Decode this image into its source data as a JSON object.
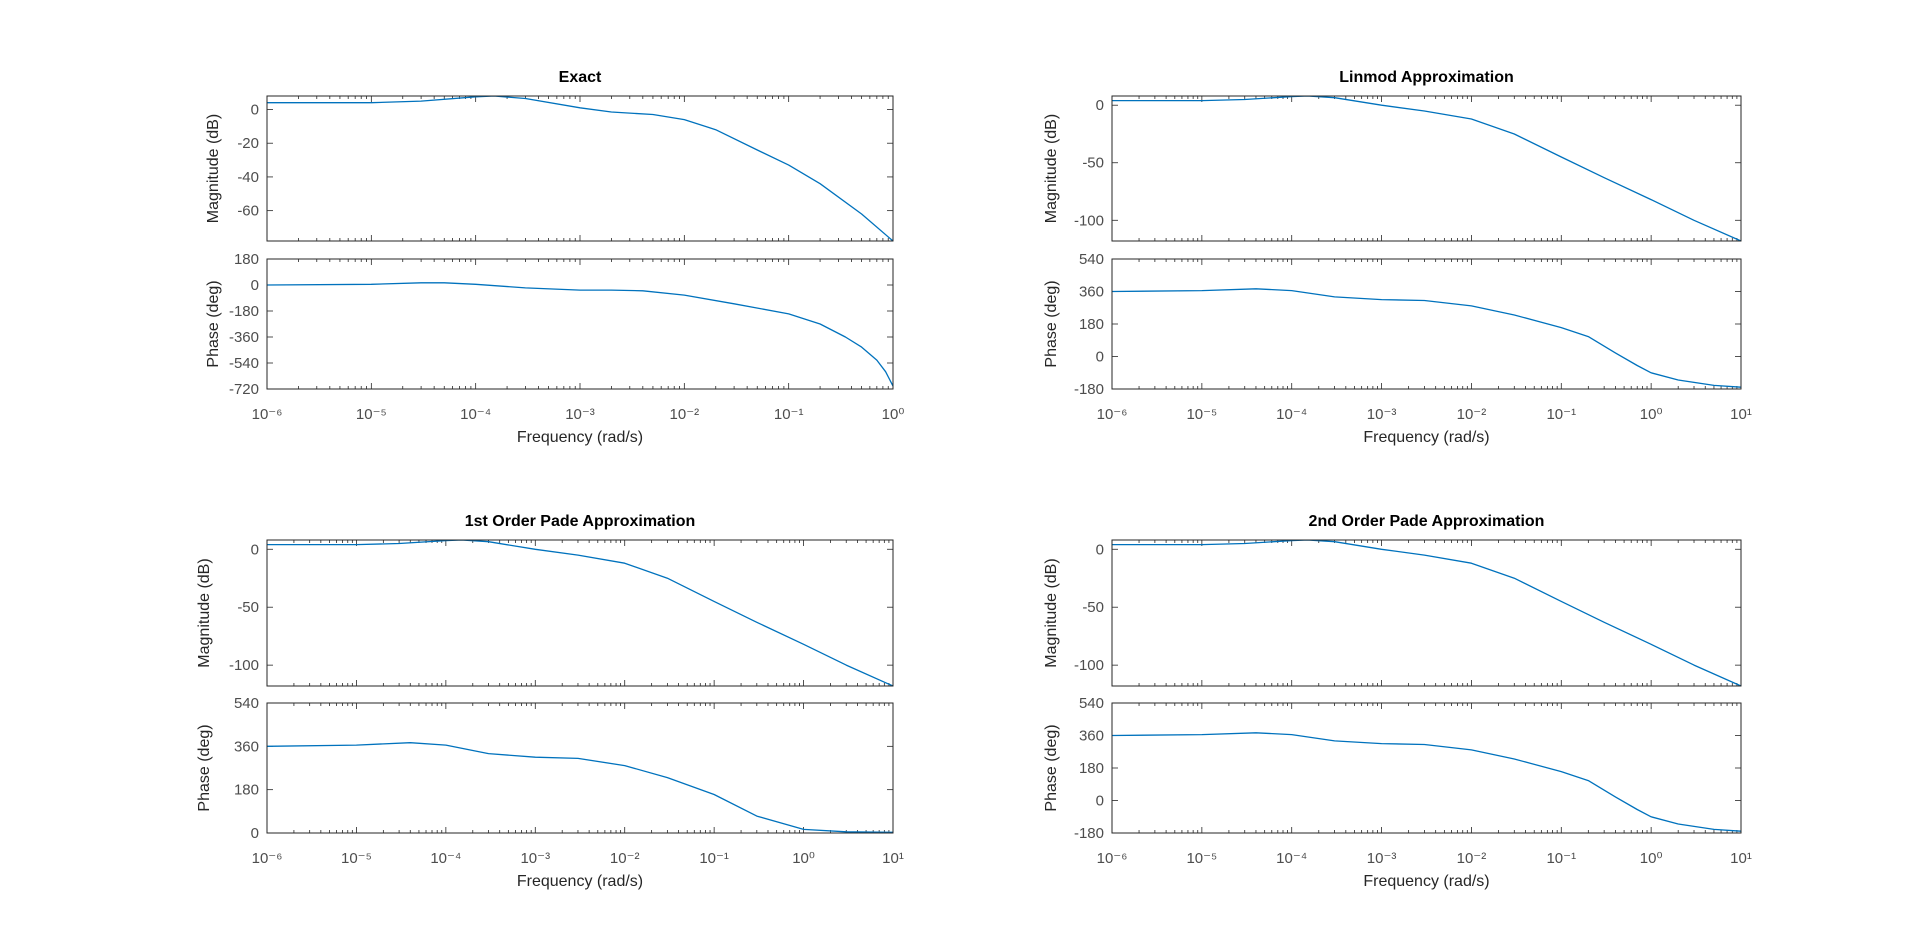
{
  "colors": {
    "line": "#0072BD",
    "axis": "#262626",
    "tick_text": "#4d4d4d",
    "background": "#ffffff"
  },
  "chart_data": [
    {
      "type": "line",
      "title": "Exact",
      "xlabel": "Frequency  (rad/s)",
      "xscale": "log",
      "xlim_exponents": [
        -6,
        0
      ],
      "magnitude": {
        "ylabel": "Magnitude (dB)",
        "ylim": [
          -78,
          8
        ],
        "yticks": [
          0,
          -20,
          -40,
          -60
        ],
        "x": [
          1e-06,
          1e-05,
          3e-05,
          0.0001,
          0.00015,
          0.0003,
          0.001,
          0.002,
          0.005,
          0.01,
          0.02,
          0.05,
          0.1,
          0.2,
          0.5,
          1
        ],
        "y": [
          4,
          4,
          5,
          7.5,
          8,
          6.5,
          1,
          -1.5,
          -3,
          -6,
          -12,
          -24,
          -33,
          -44,
          -62,
          -78
        ]
      },
      "phase": {
        "ylabel": "Phase (deg)",
        "ylim": [
          -720,
          180
        ],
        "yticks": [
          180,
          0,
          -180,
          -360,
          -540,
          -720
        ],
        "x": [
          1e-06,
          1e-05,
          3e-05,
          5e-05,
          0.0001,
          0.0003,
          0.001,
          0.002,
          0.004,
          0.01,
          0.03,
          0.1,
          0.2,
          0.35,
          0.5,
          0.7,
          0.85,
          1
        ],
        "y": [
          0,
          5,
          15,
          15,
          5,
          -20,
          -35,
          -35,
          -40,
          -70,
          -130,
          -200,
          -270,
          -360,
          -430,
          -520,
          -600,
          -700
        ]
      }
    },
    {
      "type": "line",
      "title": "Linmod Approximation",
      "xlabel": "Frequency  (rad/s)",
      "xscale": "log",
      "xlim_exponents": [
        -6,
        1
      ],
      "magnitude": {
        "ylabel": "Magnitude (dB)",
        "ylim": [
          -118,
          8
        ],
        "yticks": [
          0,
          -50,
          -100
        ],
        "x": [
          1e-06,
          1e-05,
          3e-05,
          0.0001,
          0.00015,
          0.0003,
          0.001,
          0.003,
          0.01,
          0.03,
          0.1,
          0.3,
          1,
          3,
          10
        ],
        "y": [
          4,
          4,
          5,
          7.5,
          8,
          6.5,
          0,
          -5,
          -12,
          -25,
          -45,
          -63,
          -82,
          -100,
          -118
        ]
      },
      "phase": {
        "ylabel": "Phase (deg)",
        "ylim": [
          -180,
          540
        ],
        "yticks": [
          540,
          360,
          180,
          0,
          -180
        ],
        "x": [
          1e-06,
          1e-05,
          4e-05,
          0.0001,
          0.0003,
          0.001,
          0.003,
          0.01,
          0.03,
          0.1,
          0.2,
          0.4,
          0.7,
          1,
          2,
          5,
          10
        ],
        "y": [
          360,
          365,
          375,
          365,
          330,
          315,
          310,
          280,
          230,
          160,
          110,
          20,
          -50,
          -90,
          -130,
          -160,
          -170
        ]
      }
    },
    {
      "type": "line",
      "title": "1st Order Pade Approximation",
      "xlabel": "Frequency  (rad/s)",
      "xscale": "log",
      "xlim_exponents": [
        -6,
        1
      ],
      "magnitude": {
        "ylabel": "Magnitude (dB)",
        "ylim": [
          -118,
          8
        ],
        "yticks": [
          0,
          -50,
          -100
        ],
        "x": [
          1e-06,
          1e-05,
          3e-05,
          0.0001,
          0.00015,
          0.0003,
          0.001,
          0.003,
          0.01,
          0.03,
          0.1,
          0.3,
          1,
          3,
          10
        ],
        "y": [
          4,
          4,
          5,
          7.5,
          8,
          6.5,
          0,
          -5,
          -12,
          -25,
          -45,
          -63,
          -82,
          -100,
          -118
        ]
      },
      "phase": {
        "ylabel": "Phase (deg)",
        "ylim": [
          0,
          540
        ],
        "yticks": [
          540,
          360,
          180,
          0
        ],
        "x": [
          1e-06,
          1e-05,
          4e-05,
          0.0001,
          0.0003,
          0.001,
          0.003,
          0.01,
          0.03,
          0.1,
          0.3,
          1,
          3,
          10
        ],
        "y": [
          360,
          365,
          375,
          365,
          330,
          315,
          310,
          280,
          230,
          160,
          70,
          15,
          5,
          3
        ]
      }
    },
    {
      "type": "line",
      "title": "2nd Order Pade Approximation",
      "xlabel": "Frequency  (rad/s)",
      "xscale": "log",
      "xlim_exponents": [
        -6,
        1
      ],
      "magnitude": {
        "ylabel": "Magnitude (dB)",
        "ylim": [
          -118,
          8
        ],
        "yticks": [
          0,
          -50,
          -100
        ],
        "x": [
          1e-06,
          1e-05,
          3e-05,
          0.0001,
          0.00015,
          0.0003,
          0.001,
          0.003,
          0.01,
          0.03,
          0.1,
          0.3,
          1,
          3,
          10
        ],
        "y": [
          4,
          4,
          5,
          7.5,
          8,
          6.5,
          0,
          -5,
          -12,
          -25,
          -45,
          -63,
          -82,
          -100,
          -118
        ]
      },
      "phase": {
        "ylabel": "Phase (deg)",
        "ylim": [
          -180,
          540
        ],
        "yticks": [
          540,
          360,
          180,
          0,
          -180
        ],
        "x": [
          1e-06,
          1e-05,
          4e-05,
          0.0001,
          0.0003,
          0.001,
          0.003,
          0.01,
          0.03,
          0.1,
          0.2,
          0.4,
          0.7,
          1,
          2,
          5,
          10
        ],
        "y": [
          360,
          365,
          375,
          365,
          330,
          315,
          310,
          280,
          230,
          160,
          110,
          20,
          -50,
          -90,
          -130,
          -160,
          -170
        ]
      }
    }
  ]
}
